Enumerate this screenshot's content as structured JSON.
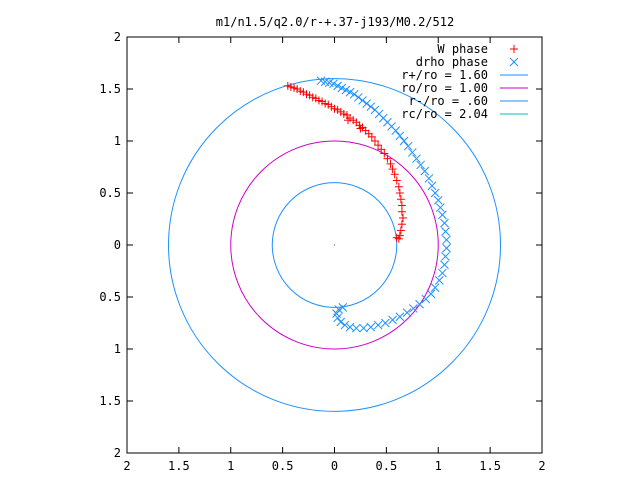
{
  "chart_data": {
    "type": "scatter",
    "title": "m1/n1.5/q2.0/r-+.37-j193/M0.2/512",
    "xlim": [
      -2,
      2
    ],
    "ylim": [
      -2,
      2
    ],
    "x_ticks": [
      -2,
      -1.5,
      -1,
      -0.5,
      0,
      0.5,
      1,
      1.5,
      2
    ],
    "y_ticks": [
      -2,
      -1.5,
      -1,
      -0.5,
      0,
      0.5,
      1,
      1.5,
      2
    ],
    "x_tick_labels": [
      "2",
      "1.5",
      "1",
      "0.5",
      "0",
      "0.5",
      "1",
      "1.5",
      "2"
    ],
    "y_tick_labels": [
      "2",
      "1.5",
      "1",
      "0.5",
      "0",
      "0.5",
      "1",
      "1.5",
      "2"
    ],
    "grid": false,
    "legend_position": "top-right",
    "center_point": [
      0,
      0
    ],
    "series": [
      {
        "name": "W phase",
        "marker": "plus",
        "color": "#ff0000",
        "points": [
          [
            -0.45,
            1.53
          ],
          [
            -0.42,
            1.52
          ],
          [
            -0.39,
            1.51
          ],
          [
            -0.36,
            1.5
          ],
          [
            -0.33,
            1.48
          ],
          [
            -0.3,
            1.47
          ],
          [
            -0.27,
            1.45
          ],
          [
            -0.24,
            1.44
          ],
          [
            -0.21,
            1.42
          ],
          [
            -0.18,
            1.41
          ],
          [
            -0.15,
            1.39
          ],
          [
            -0.12,
            1.38
          ],
          [
            -0.09,
            1.36
          ],
          [
            -0.06,
            1.35
          ],
          [
            -0.03,
            1.33
          ],
          [
            0.0,
            1.31
          ],
          [
            0.03,
            1.3
          ],
          [
            0.06,
            1.28
          ],
          [
            0.09,
            1.26
          ],
          [
            0.12,
            1.25
          ],
          [
            0.15,
            1.22
          ],
          [
            0.18,
            1.2
          ],
          [
            0.21,
            1.18
          ],
          [
            0.24,
            1.15
          ],
          [
            0.27,
            1.13
          ],
          [
            0.3,
            1.1
          ],
          [
            0.33,
            1.07
          ],
          [
            0.36,
            1.04
          ],
          [
            0.39,
            1.0
          ],
          [
            0.42,
            0.96
          ],
          [
            0.45,
            0.92
          ],
          [
            0.48,
            0.88
          ],
          [
            0.51,
            0.83
          ],
          [
            0.54,
            0.78
          ],
          [
            0.56,
            0.73
          ],
          [
            0.58,
            0.68
          ],
          [
            0.6,
            0.62
          ],
          [
            0.62,
            0.56
          ],
          [
            0.63,
            0.5
          ],
          [
            0.64,
            0.44
          ],
          [
            0.65,
            0.38
          ],
          [
            0.65,
            0.32
          ],
          [
            0.66,
            0.26
          ],
          [
            0.65,
            0.2
          ],
          [
            0.64,
            0.14
          ],
          [
            0.63,
            0.09
          ],
          [
            0.62,
            0.06
          ],
          [
            0.6,
            0.07
          ],
          [
            0.13,
            1.2
          ],
          [
            0.25,
            1.12
          ]
        ]
      },
      {
        "name": "drho phase",
        "marker": "cross",
        "color": "#1e90ff",
        "points": [
          [
            -0.13,
            1.58
          ],
          [
            -0.09,
            1.57
          ],
          [
            -0.05,
            1.56
          ],
          [
            -0.01,
            1.55
          ],
          [
            0.03,
            1.53
          ],
          [
            0.07,
            1.51
          ],
          [
            0.11,
            1.49
          ],
          [
            0.15,
            1.47
          ],
          [
            0.19,
            1.45
          ],
          [
            0.23,
            1.42
          ],
          [
            0.27,
            1.39
          ],
          [
            0.31,
            1.36
          ],
          [
            0.35,
            1.33
          ],
          [
            0.39,
            1.3
          ],
          [
            0.43,
            1.26
          ],
          [
            0.47,
            1.22
          ],
          [
            0.51,
            1.18
          ],
          [
            0.55,
            1.14
          ],
          [
            0.59,
            1.1
          ],
          [
            0.63,
            1.05
          ],
          [
            0.67,
            1.0
          ],
          [
            0.71,
            0.95
          ],
          [
            0.75,
            0.89
          ],
          [
            0.79,
            0.83
          ],
          [
            0.83,
            0.77
          ],
          [
            0.87,
            0.71
          ],
          [
            0.91,
            0.64
          ],
          [
            0.94,
            0.57
          ],
          [
            0.97,
            0.5
          ],
          [
            1.0,
            0.43
          ],
          [
            1.02,
            0.36
          ],
          [
            1.04,
            0.29
          ],
          [
            1.06,
            0.21
          ],
          [
            1.07,
            0.13
          ],
          [
            1.08,
            0.05
          ],
          [
            1.08,
            -0.03
          ],
          [
            1.07,
            -0.11
          ],
          [
            1.06,
            -0.19
          ],
          [
            1.04,
            -0.27
          ],
          [
            1.01,
            -0.34
          ],
          [
            0.97,
            -0.41
          ],
          [
            0.93,
            -0.47
          ],
          [
            0.88,
            -0.52
          ],
          [
            0.82,
            -0.57
          ],
          [
            0.76,
            -0.61
          ],
          [
            0.7,
            -0.65
          ],
          [
            0.63,
            -0.69
          ],
          [
            0.56,
            -0.72
          ],
          [
            0.49,
            -0.75
          ],
          [
            0.42,
            -0.77
          ],
          [
            0.35,
            -0.79
          ],
          [
            0.28,
            -0.8
          ],
          [
            0.21,
            -0.8
          ],
          [
            0.15,
            -0.79
          ],
          [
            0.1,
            -0.77
          ],
          [
            0.06,
            -0.74
          ],
          [
            0.03,
            -0.7
          ],
          [
            0.02,
            -0.66
          ],
          [
            0.04,
            -0.62
          ],
          [
            0.08,
            -0.6
          ]
        ]
      },
      {
        "name": "r+/ro = 1.60",
        "marker": "line",
        "shape": "circle",
        "radius": 1.6,
        "color": "#1e90ff"
      },
      {
        "name": "ro/ro = 1.00",
        "marker": "line",
        "shape": "circle",
        "radius": 1.0,
        "color": "#cc00cc"
      },
      {
        "name": "r-/ro = .60",
        "marker": "line",
        "shape": "circle",
        "radius": 0.6,
        "color": "#1e90ff"
      },
      {
        "name": "rc/ro = 2.04",
        "marker": "line",
        "shape": "none",
        "radius": 2.04,
        "color": "#00c0c0"
      }
    ]
  }
}
